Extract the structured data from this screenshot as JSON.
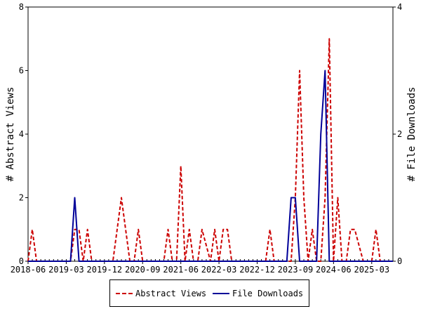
{
  "chart_data": {
    "type": "line",
    "xlabel": "",
    "ylabel": "# Abstract Views",
    "y2label": "# File Downloads",
    "ylim": [
      0,
      8
    ],
    "y2lim": [
      0,
      4
    ],
    "yticks": [
      "0",
      "2",
      "4",
      "6",
      "8"
    ],
    "y2ticks": [
      "0",
      "2",
      "4"
    ],
    "xticks": [
      "2018-06",
      "2019-03",
      "2019-12",
      "2020-09",
      "2021-06",
      "2022-03",
      "2022-12",
      "2023-09",
      "2024-06",
      "2025-03"
    ],
    "x_start": "2018-06",
    "x_end": "2025-08",
    "legend_position": "bottom",
    "grid": false,
    "series": [
      {
        "name": "Abstract Views",
        "color": "#cc0000",
        "style": "dashed",
        "axis": "left",
        "x": [
          "2018-06",
          "2018-07",
          "2018-08",
          "2019-04",
          "2019-05",
          "2019-06",
          "2019-07",
          "2019-08",
          "2019-09",
          "2019-10",
          "2020-02",
          "2020-04",
          "2020-06",
          "2020-07",
          "2020-08",
          "2020-09",
          "2020-10",
          "2020-11",
          "2021-02",
          "2021-03",
          "2021-04",
          "2021-05",
          "2021-06",
          "2021-07",
          "2021-08",
          "2021-09",
          "2021-10",
          "2021-11",
          "2022-01",
          "2022-02",
          "2022-03",
          "2022-04",
          "2022-05",
          "2022-06",
          "2022-08",
          "2022-09",
          "2023-02",
          "2023-03",
          "2023-04",
          "2023-08",
          "2023-09",
          "2023-10",
          "2023-11",
          "2023-12",
          "2024-01",
          "2024-02",
          "2024-03",
          "2024-04",
          "2024-05",
          "2024-06",
          "2024-07",
          "2024-08",
          "2024-09",
          "2024-10",
          "2024-11",
          "2025-01",
          "2025-03",
          "2025-04",
          "2025-05",
          "2025-08"
        ],
        "y": [
          0,
          1,
          0,
          0,
          1,
          1,
          0,
          1,
          0,
          0,
          0,
          2,
          0,
          0,
          1,
          0,
          0,
          0,
          0,
          1,
          0,
          0,
          3,
          0,
          1,
          0,
          0,
          1,
          0,
          1,
          0,
          1,
          1,
          0,
          0,
          0,
          0,
          1,
          0,
          0,
          2,
          6,
          2,
          0,
          1,
          0,
          0,
          2,
          7,
          0,
          2,
          0,
          0,
          1,
          1,
          0,
          0,
          1,
          0,
          0
        ]
      },
      {
        "name": "File Downloads",
        "color": "#000099",
        "style": "solid",
        "axis": "right",
        "x": [
          "2018-06",
          "2019-04",
          "2019-05",
          "2019-06",
          "2023-07",
          "2023-08",
          "2023-09",
          "2023-10",
          "2024-02",
          "2024-03",
          "2024-04",
          "2024-05",
          "2025-08"
        ],
        "y": [
          0,
          0,
          1,
          0,
          0,
          1,
          1,
          0,
          0,
          2,
          3,
          0,
          0
        ]
      }
    ]
  }
}
